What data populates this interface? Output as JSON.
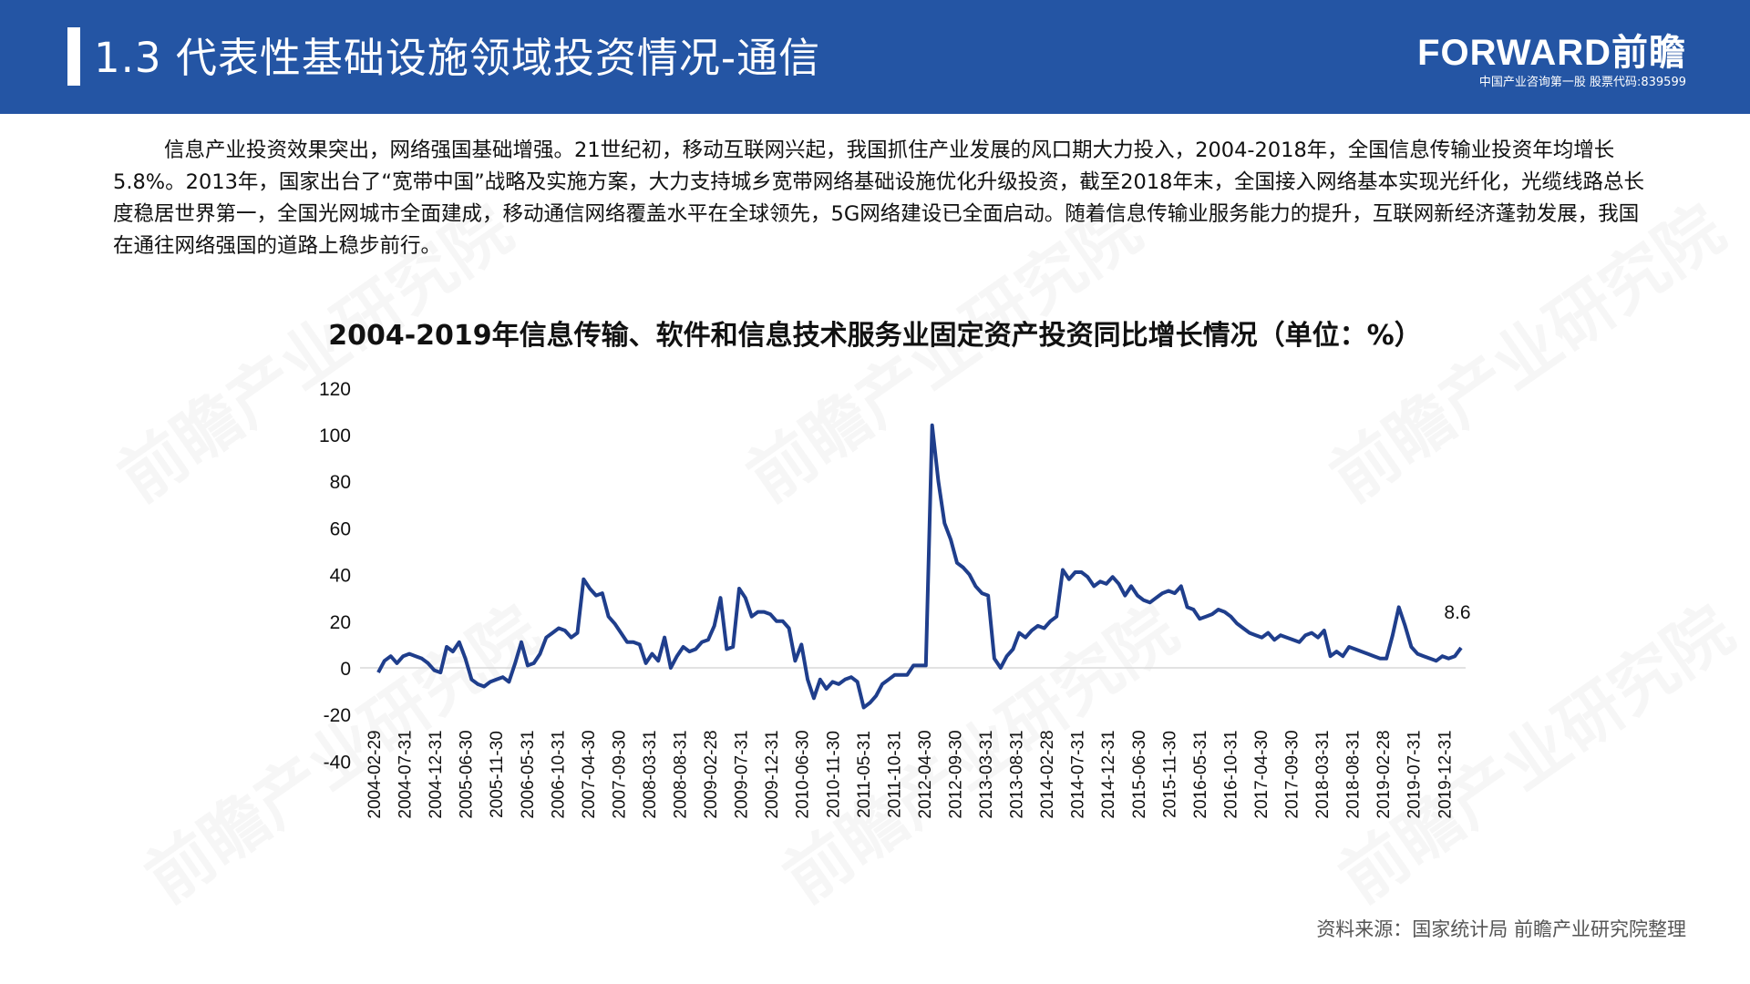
{
  "header": {
    "title": "1.3  代表性基础设施领域投资情况-通信",
    "logo_name": "FORWARD前瞻",
    "logo_sub": "中国产业咨询第一股 股票代码:839599"
  },
  "paragraph": "信息产业投资效果突出，网络强国基础增强。21世纪初，移动互联网兴起，我国抓住产业发展的风口期大力投入，2004-2018年，全国信息传输业投资年均增长5.8%。2013年，国家出台了“宽带中国”战略及实施方案，大力支持城乡宽带网络基础设施优化升级投资，截至2018年末，全国接入网络基本实现光纤化，光缆线路总长度稳居世界第一，全国光网城市全面建成，移动通信网络覆盖水平在全球领先，5G网络建设已全面启动。随着信息传输业服务能力的提升，互联网新经济蓬勃发展，我国在通往网络强国的道路上稳步前行。",
  "watermark": "前瞻产业研究院",
  "source": "资料来源：国家统计局 前瞻产业研究院整理",
  "chart_data": {
    "type": "line",
    "title": "2004-2019年信息传输、软件和信息技术服务业固定资产投资同比增长情况（单位：%）",
    "ylim": [
      -40,
      120
    ],
    "y_ticks": [
      "120",
      "100",
      "80",
      "60",
      "40",
      "20",
      "0",
      "-20",
      "-40"
    ],
    "x_tick_labels": [
      "2004-02-29",
      "2004-07-31",
      "2004-12-31",
      "2005-06-30",
      "2005-11-30",
      "2006-05-31",
      "2006-10-31",
      "2007-04-30",
      "2007-09-30",
      "2008-03-31",
      "2008-08-31",
      "2009-02-28",
      "2009-07-31",
      "2009-12-31",
      "2010-06-30",
      "2010-11-30",
      "2011-05-31",
      "2011-10-31",
      "2012-04-30",
      "2012-09-30",
      "2013-03-31",
      "2013-08-31",
      "2014-02-28",
      "2014-07-31",
      "2014-12-31",
      "2015-06-30",
      "2015-11-30",
      "2016-05-31",
      "2016-10-31",
      "2017-04-30",
      "2017-09-30",
      "2018-03-31",
      "2018-08-31",
      "2019-02-28",
      "2019-07-31",
      "2019-12-31"
    ],
    "line_color": "#1f3e8c",
    "end_label": "8.6",
    "series": [
      {
        "values": [
          -2,
          3,
          5,
          2,
          5,
          6,
          5,
          4,
          2,
          -1,
          -2,
          9,
          7,
          11,
          4,
          -5,
          -7,
          -8,
          -6,
          -5,
          -4,
          -6,
          2,
          11,
          1,
          2,
          6,
          13,
          15,
          17,
          16,
          13,
          15,
          38,
          34,
          31,
          32,
          22,
          19,
          15,
          11,
          11,
          10,
          2,
          6,
          3,
          13,
          0,
          5,
          9,
          7,
          8,
          11,
          12,
          18,
          30,
          8,
          9,
          34,
          30,
          22,
          24,
          24,
          23,
          20,
          20,
          17,
          3,
          10,
          -5,
          -13,
          -5,
          -9,
          -6,
          -7,
          -5,
          -4,
          -6,
          -17,
          -15,
          -12,
          -7,
          -5,
          -3,
          -3,
          -3,
          1,
          1,
          1,
          104,
          80,
          62,
          55,
          45,
          43,
          40,
          35,
          32,
          31,
          4,
          0,
          5,
          8,
          15,
          13,
          16,
          18,
          17,
          20,
          22,
          42,
          38,
          41,
          41,
          39,
          35,
          37,
          36,
          39,
          36,
          31,
          35,
          31,
          29,
          28,
          30,
          32,
          33,
          32,
          35,
          26,
          25,
          21,
          22,
          23,
          25,
          24,
          22,
          19,
          17,
          15,
          14,
          13,
          15,
          12,
          14,
          13,
          12,
          11,
          14,
          15,
          13,
          16,
          5,
          7,
          5,
          9,
          8,
          7,
          6,
          5,
          4,
          4,
          14,
          26,
          18,
          9,
          6,
          5,
          4,
          3,
          5,
          4,
          5,
          8.6
        ]
      }
    ]
  }
}
